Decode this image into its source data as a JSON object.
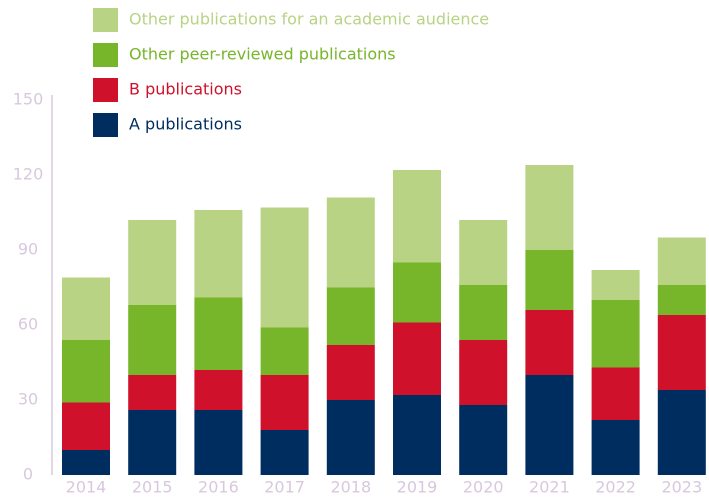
{
  "chart_data": {
    "type": "stacked_bar",
    "categories": [
      "2014",
      "2015",
      "2016",
      "2017",
      "2018",
      "2019",
      "2020",
      "2021",
      "2022",
      "2023"
    ],
    "series": [
      {
        "name": "A publications",
        "color": "#002d5f",
        "values": [
          10,
          26,
          26,
          18,
          30,
          32,
          28,
          40,
          22,
          34
        ]
      },
      {
        "name": "B publications",
        "color": "#d0112b",
        "values": [
          19,
          14,
          16,
          22,
          22,
          29,
          26,
          26,
          21,
          30
        ]
      },
      {
        "name": "Other peer-reviewed publications",
        "color": "#77b52a",
        "values": [
          25,
          28,
          29,
          19,
          23,
          24,
          22,
          24,
          27,
          12
        ]
      },
      {
        "name": "Other publications for an academic audience",
        "color": "#b8d384",
        "values": [
          25,
          34,
          35,
          48,
          36,
          37,
          26,
          34,
          12,
          19
        ]
      }
    ],
    "ylim": [
      0,
      150
    ],
    "yticks": [
      0,
      30,
      60,
      90,
      120,
      150
    ],
    "legend": "top-left",
    "grid": false
  }
}
